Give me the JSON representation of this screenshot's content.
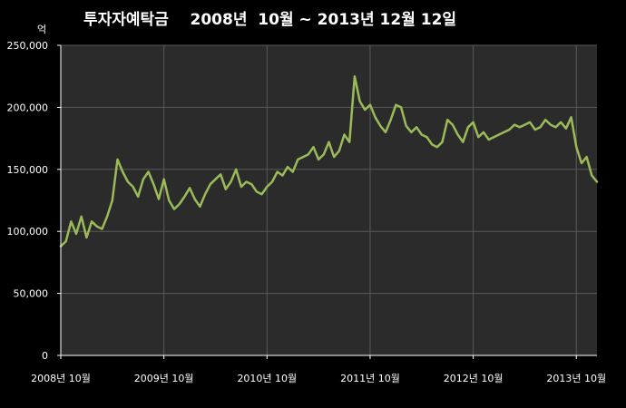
{
  "chart_data": {
    "type": "line",
    "title": "투자자예탁금    2008년  10월 ~ 2013년 12월 12일",
    "ylabel": "억",
    "xlabel": "",
    "ylim": [
      0,
      250000
    ],
    "yticks": [
      0,
      50000,
      100000,
      150000,
      200000,
      250000
    ],
    "ytick_labels": [
      "0",
      "50,000",
      "100,000",
      "150,000",
      "200,000",
      "250,000"
    ],
    "xlim": [
      2008.75,
      2013.95
    ],
    "xticks": [
      2008.75,
      2009.75,
      2010.75,
      2011.75,
      2012.75,
      2013.75
    ],
    "xtick_labels": [
      "2008년 10월",
      "2009년 10월",
      "2010년 10월",
      "2011년 10월",
      "2012년 10월",
      "2013년 10월"
    ],
    "grid": true,
    "legend": "none",
    "colors": {
      "background": "#000000",
      "plot_area": "#2b2b2b",
      "grid": "#5a5a5a",
      "line": "#9bbb59",
      "text": "#ffffff"
    },
    "series": [
      {
        "x": [
          2008.75,
          2008.8,
          2008.85,
          2008.9,
          2008.95,
          2009.0,
          2009.05,
          2009.1,
          2009.15,
          2009.2,
          2009.25,
          2009.3,
          2009.35,
          2009.4,
          2009.45,
          2009.5,
          2009.55,
          2009.6,
          2009.65,
          2009.7,
          2009.75,
          2009.8,
          2009.85,
          2009.9,
          2009.95,
          2010.0,
          2010.05,
          2010.1,
          2010.15,
          2010.2,
          2010.25,
          2010.3,
          2010.35,
          2010.4,
          2010.45,
          2010.5,
          2010.55,
          2010.6,
          2010.65,
          2010.7,
          2010.75,
          2010.8,
          2010.85,
          2010.9,
          2010.95,
          2011.0,
          2011.05,
          2011.1,
          2011.15,
          2011.2,
          2011.25,
          2011.3,
          2011.35,
          2011.4,
          2011.45,
          2011.5,
          2011.55,
          2011.6,
          2011.65,
          2011.7,
          2011.75,
          2011.8,
          2011.85,
          2011.9,
          2011.95,
          2012.0,
          2012.05,
          2012.1,
          2012.15,
          2012.2,
          2012.25,
          2012.3,
          2012.35,
          2012.4,
          2012.45,
          2012.5,
          2012.55,
          2012.6,
          2012.65,
          2012.7,
          2012.75,
          2012.8,
          2012.85,
          2012.9,
          2012.95,
          2013.0,
          2013.05,
          2013.1,
          2013.15,
          2013.2,
          2013.25,
          2013.3,
          2013.35,
          2013.4,
          2013.45,
          2013.5,
          2013.55,
          2013.6,
          2013.65,
          2013.7,
          2013.75,
          2013.8,
          2013.85,
          2013.9,
          2013.95
        ],
        "y": [
          88000,
          92000,
          108000,
          98000,
          112000,
          95000,
          108000,
          104000,
          102000,
          112000,
          125000,
          158000,
          148000,
          140000,
          136000,
          128000,
          142000,
          148000,
          138000,
          126000,
          142000,
          125000,
          118000,
          122000,
          128000,
          135000,
          126000,
          120000,
          130000,
          138000,
          142000,
          146000,
          134000,
          140000,
          150000,
          136000,
          140000,
          138000,
          132000,
          130000,
          136000,
          140000,
          148000,
          145000,
          152000,
          148000,
          158000,
          160000,
          162000,
          168000,
          158000,
          162000,
          172000,
          160000,
          165000,
          178000,
          172000,
          225000,
          205000,
          198000,
          202000,
          192000,
          185000,
          180000,
          190000,
          202000,
          200000,
          185000,
          180000,
          184000,
          178000,
          176000,
          170000,
          168000,
          172000,
          190000,
          186000,
          178000,
          172000,
          184000,
          188000,
          176000,
          180000,
          174000,
          176000,
          178000,
          180000,
          182000,
          186000,
          184000,
          186000,
          188000,
          182000,
          184000,
          190000,
          186000,
          184000,
          188000,
          183000,
          192000,
          168000,
          155000,
          160000,
          145000,
          140000
        ]
      }
    ]
  }
}
